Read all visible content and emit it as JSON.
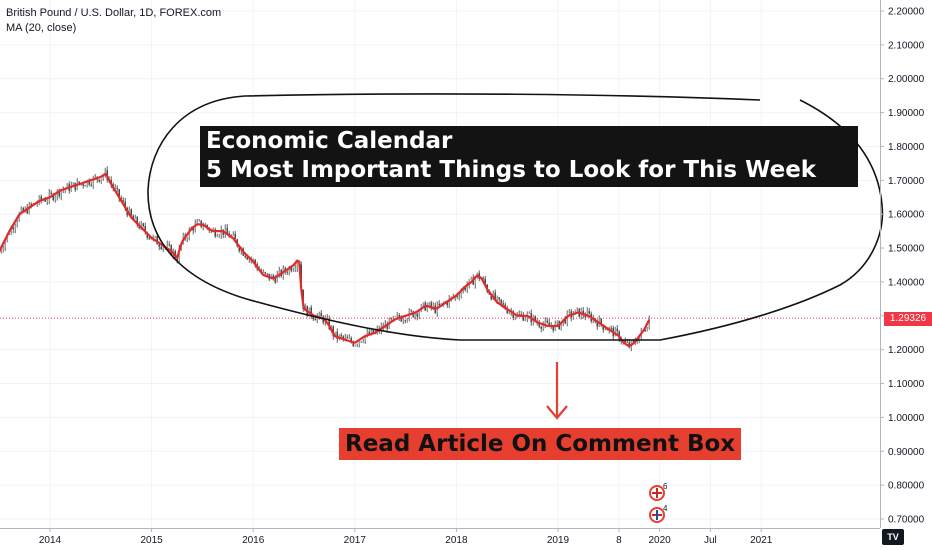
{
  "chart_header": {
    "symbol_line": "British Pound / U.S. Dollar, 1D, FOREX.com",
    "indicator_line": "MA (20, close)"
  },
  "annotations": {
    "headline_line1": "Economic Calendar",
    "headline_line2": "5 Most Important Things to Look for This Week",
    "cta_text": "Read Article On Comment Box"
  },
  "price_tag": "1.29326",
  "logo_badge": "TV",
  "event_markers": [
    {
      "icon": "uk-flag-icon",
      "count": "6"
    },
    {
      "icon": "us-flag-icon",
      "count": "4"
    }
  ],
  "colors": {
    "candles": "#3a3a3a",
    "moving_average": "#e02b2b",
    "price_line": "#f23645",
    "drawing": "#131313",
    "arrow": "#e63e2f"
  },
  "chart_data": {
    "type": "line",
    "title": "British Pound / U.S. Dollar, 1D, FOREX.com",
    "ylim": [
      0.68,
      2.23
    ],
    "xlim": [
      2013.5,
      2021.6
    ],
    "y_ticks": [
      "2.20000",
      "2.10000",
      "2.00000",
      "1.90000",
      "1.80000",
      "1.70000",
      "1.60000",
      "1.50000",
      "1.40000",
      "1.30000",
      "1.20000",
      "1.10000",
      "1.00000",
      "0.90000",
      "0.80000",
      "0.70000"
    ],
    "y_tick_values": [
      2.2,
      2.1,
      2.0,
      1.9,
      1.8,
      1.7,
      1.6,
      1.5,
      1.4,
      1.3,
      1.2,
      1.1,
      1.0,
      0.9,
      0.8,
      0.7
    ],
    "x_ticks": [
      "2014",
      "2015",
      "2016",
      "2017",
      "2018",
      "2019",
      "8",
      "2020",
      "Jul",
      "2021"
    ],
    "x_tick_values": [
      2014.0,
      2015.0,
      2016.0,
      2017.0,
      2018.0,
      2019.0,
      2019.6,
      2020.0,
      2020.5,
      2021.0
    ],
    "last_price": 1.29326,
    "series": [
      {
        "name": "GBPUSD",
        "x": [
          2013.5,
          2013.6,
          2013.7,
          2013.8,
          2013.9,
          2014.0,
          2014.1,
          2014.2,
          2014.3,
          2014.4,
          2014.5,
          2014.55,
          2014.6,
          2014.7,
          2014.8,
          2014.9,
          2015.0,
          2015.1,
          2015.2,
          2015.25,
          2015.3,
          2015.4,
          2015.45,
          2015.5,
          2015.6,
          2015.7,
          2015.8,
          2015.9,
          2016.0,
          2016.1,
          2016.2,
          2016.3,
          2016.4,
          2016.45,
          2016.48,
          2016.5,
          2016.6,
          2016.7,
          2016.75,
          2016.8,
          2016.9,
          2017.0,
          2017.1,
          2017.2,
          2017.3,
          2017.4,
          2017.5,
          2017.6,
          2017.7,
          2017.8,
          2017.9,
          2018.0,
          2018.1,
          2018.15,
          2018.2,
          2018.25,
          2018.3,
          2018.4,
          2018.5,
          2018.6,
          2018.7,
          2018.8,
          2018.9,
          2019.0,
          2019.1,
          2019.2,
          2019.3,
          2019.4,
          2019.5,
          2019.6,
          2019.65,
          2019.7,
          2019.75,
          2019.8,
          2019.85,
          2019.9
        ],
        "y": [
          1.49,
          1.55,
          1.6,
          1.62,
          1.64,
          1.65,
          1.67,
          1.68,
          1.69,
          1.7,
          1.71,
          1.72,
          1.69,
          1.64,
          1.59,
          1.56,
          1.53,
          1.51,
          1.49,
          1.47,
          1.52,
          1.56,
          1.57,
          1.57,
          1.55,
          1.55,
          1.53,
          1.49,
          1.46,
          1.42,
          1.41,
          1.43,
          1.45,
          1.47,
          1.35,
          1.32,
          1.3,
          1.29,
          1.27,
          1.24,
          1.23,
          1.22,
          1.24,
          1.25,
          1.27,
          1.29,
          1.3,
          1.31,
          1.33,
          1.32,
          1.34,
          1.36,
          1.39,
          1.4,
          1.42,
          1.41,
          1.38,
          1.34,
          1.32,
          1.3,
          1.3,
          1.28,
          1.27,
          1.27,
          1.3,
          1.31,
          1.3,
          1.28,
          1.26,
          1.24,
          1.22,
          1.21,
          1.22,
          1.24,
          1.26,
          1.29
        ]
      }
    ]
  }
}
